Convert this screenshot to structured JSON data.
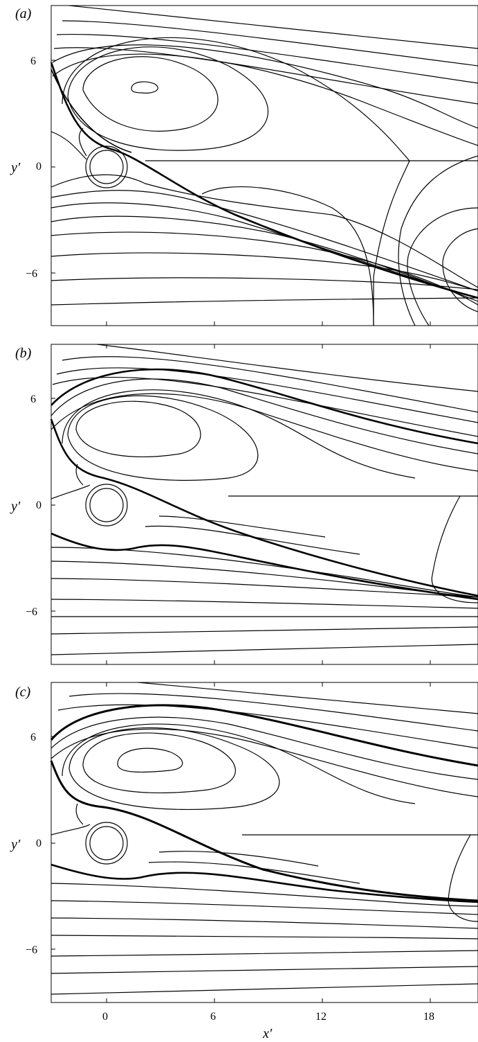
{
  "figure": {
    "x_axis_label": "x′",
    "y_axis_label": "y′",
    "x_ticks": [
      "0",
      "6",
      "12",
      "18"
    ],
    "y_ticks": [
      "6",
      "0",
      "−6"
    ],
    "line_color": "#000000",
    "panels": [
      {
        "id": "a",
        "label": "(a)"
      },
      {
        "id": "b",
        "label": "(b)"
      },
      {
        "id": "c",
        "label": "(c)"
      }
    ]
  }
}
